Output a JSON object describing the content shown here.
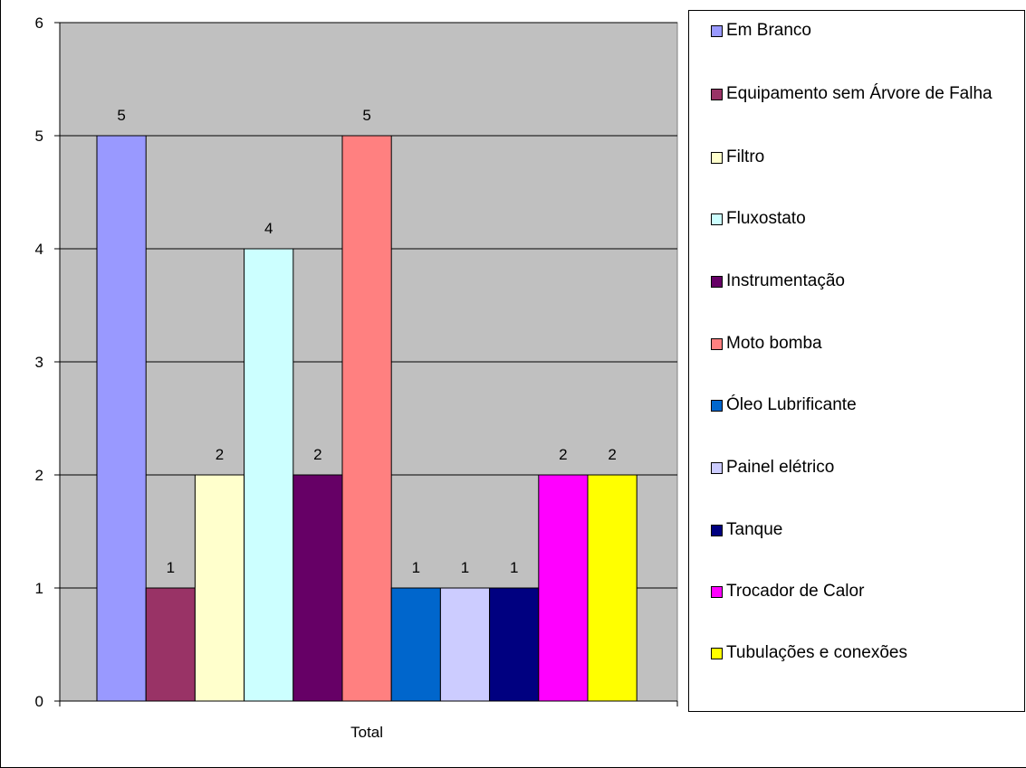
{
  "chart_data": {
    "type": "bar",
    "categories": [
      "Total"
    ],
    "ylim": [
      0,
      6
    ],
    "yticks": [
      0,
      1,
      2,
      3,
      4,
      5,
      6
    ],
    "grid": true,
    "legend_position": "right",
    "series": [
      {
        "name": "Em Branco",
        "values": [
          5
        ],
        "color": "#9999FF"
      },
      {
        "name": "Equipamento sem Árvore de Falha",
        "values": [
          1
        ],
        "color": "#993366"
      },
      {
        "name": "Filtro",
        "values": [
          2
        ],
        "color": "#FFFFCC"
      },
      {
        "name": "Fluxostato",
        "values": [
          4
        ],
        "color": "#CCFFFF"
      },
      {
        "name": "Instrumentação",
        "values": [
          2
        ],
        "color": "#660066"
      },
      {
        "name": "Moto bomba",
        "values": [
          5
        ],
        "color": "#FF8080"
      },
      {
        "name": "Óleo Lubrificante",
        "values": [
          1
        ],
        "color": "#0066CC"
      },
      {
        "name": "Painel elétrico",
        "values": [
          1
        ],
        "color": "#CCCCFF"
      },
      {
        "name": "Tanque",
        "values": [
          1
        ],
        "color": "#000080"
      },
      {
        "name": "Trocador de Calor",
        "values": [
          2
        ],
        "color": "#FF00FF"
      },
      {
        "name": "Tubulações e conexões",
        "values": [
          2
        ],
        "color": "#FFFF00"
      }
    ],
    "plot_background": "#C0C0C0"
  }
}
